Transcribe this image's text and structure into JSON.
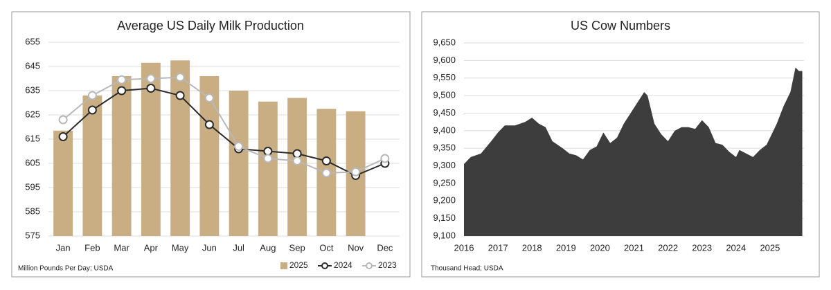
{
  "chart_data": [
    {
      "type": "bar-line",
      "title": "Average US Daily Milk Production",
      "note": "Million Pounds Per Day; USDA",
      "categories": [
        "Jan",
        "Feb",
        "Mar",
        "Apr",
        "May",
        "Jun",
        "Jul",
        "Aug",
        "Sep",
        "Oct",
        "Nov",
        "Dec"
      ],
      "series": [
        {
          "name": "2025",
          "mark": "bar",
          "color": "#c9ae83",
          "values": [
            618.5,
            633,
            641,
            646.5,
            647.5,
            641,
            635,
            630.5,
            632,
            627.5,
            626.5,
            null
          ]
        },
        {
          "name": "2024",
          "mark": "line",
          "color": "#2b2b2b",
          "values": [
            616,
            627,
            635,
            636,
            633,
            621,
            611,
            610,
            609,
            606,
            600,
            605
          ]
        },
        {
          "name": "2023",
          "mark": "line",
          "color": "#b8b8b8",
          "values": [
            623,
            633,
            639.5,
            640,
            640.5,
            632,
            612,
            607,
            606,
            601,
            601.5,
            607
          ]
        }
      ],
      "ylim": [
        575,
        655
      ],
      "yticks": [
        575,
        585,
        595,
        605,
        615,
        625,
        635,
        645,
        655
      ],
      "grid": true
    },
    {
      "type": "area",
      "title": "US Cow Numbers",
      "note": "Thousand Head; USDA",
      "color": "#3d3d3d",
      "x": [
        2016,
        2016.2,
        2016.5,
        2016.8,
        2017,
        2017.2,
        2017.5,
        2017.8,
        2018,
        2018.2,
        2018.4,
        2018.6,
        2018.9,
        2019.1,
        2019.3,
        2019.5,
        2019.7,
        2019.9,
        2020.1,
        2020.3,
        2020.5,
        2020.7,
        2020.9,
        2021.1,
        2021.3,
        2021.4,
        2021.6,
        2021.8,
        2022,
        2022.2,
        2022.4,
        2022.6,
        2022.8,
        2023,
        2023.2,
        2023.4,
        2023.6,
        2023.8,
        2024,
        2024.1,
        2024.3,
        2024.5,
        2024.7,
        2024.9,
        2025,
        2025.2,
        2025.4,
        2025.6,
        2025.75,
        2025.85,
        2025.95
      ],
      "values": [
        9305,
        9325,
        9335,
        9370,
        9395,
        9415,
        9415,
        9425,
        9437,
        9420,
        9410,
        9370,
        9350,
        9335,
        9330,
        9318,
        9345,
        9355,
        9395,
        9365,
        9380,
        9420,
        9450,
        9480,
        9510,
        9500,
        9420,
        9390,
        9370,
        9400,
        9410,
        9410,
        9405,
        9430,
        9410,
        9365,
        9360,
        9340,
        9325,
        9345,
        9335,
        9325,
        9345,
        9360,
        9380,
        9420,
        9470,
        9510,
        9580,
        9570,
        9570
      ],
      "xlim": [
        2016,
        2026
      ],
      "xticks": [
        2016,
        2017,
        2018,
        2019,
        2020,
        2021,
        2022,
        2023,
        2024,
        2025
      ],
      "ylim": [
        9100,
        9650
      ],
      "yticks": [
        {
          "value": 9100,
          "label": "9,100"
        },
        {
          "value": 9150,
          "label": "9,150"
        },
        {
          "value": 9200,
          "label": "9,200"
        },
        {
          "value": 9250,
          "label": "9,250"
        },
        {
          "value": 9300,
          "label": "9,300"
        },
        {
          "value": 9350,
          "label": "9,350"
        },
        {
          "value": 9400,
          "label": "9,400"
        },
        {
          "value": 9450,
          "label": "9,450"
        },
        {
          "value": 9500,
          "label": "9,500"
        },
        {
          "value": 9550,
          "label": "9,550"
        },
        {
          "value": 9600,
          "label": "9,600"
        },
        {
          "value": 9650,
          "label": "9,650"
        }
      ],
      "grid": true
    }
  ]
}
